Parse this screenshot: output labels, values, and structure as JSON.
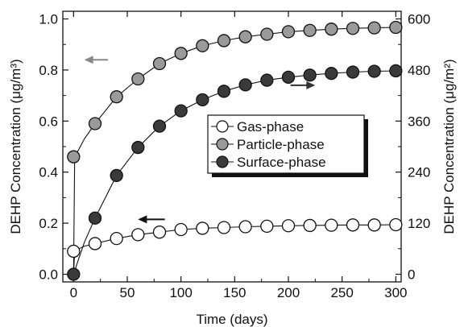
{
  "chart_data": {
    "type": "line",
    "xlabel": "Time (days)",
    "ylabel_left": "DEHP Concentration (μg/m³)",
    "ylabel_right": "DEHP Concentration (μg/m²)",
    "xlim": [
      -10,
      305
    ],
    "ylim_left": [
      -0.03,
      1.03
    ],
    "ylim_right": [
      -18,
      618
    ],
    "x_ticks": [
      0,
      50,
      100,
      150,
      200,
      250,
      300
    ],
    "y_left_ticks": [
      "0.0",
      "0.2",
      "0.4",
      "0.6",
      "0.8",
      "1.0"
    ],
    "y_right_ticks": [
      "0",
      "120",
      "240",
      "360",
      "480",
      "600"
    ],
    "series": [
      {
        "name": "Gas-phase",
        "axis": "left",
        "color": "#ffffff",
        "x": [
          0,
          20,
          40,
          60,
          80,
          100,
          120,
          140,
          160,
          180,
          200,
          220,
          240,
          260,
          280,
          300
        ],
        "y": [
          0.09,
          0.12,
          0.14,
          0.155,
          0.165,
          0.175,
          0.18,
          0.183,
          0.186,
          0.188,
          0.19,
          0.191,
          0.192,
          0.193,
          0.193,
          0.194
        ],
        "curve_x": [
          0,
          1,
          5,
          10,
          20,
          40,
          60,
          80,
          100,
          120,
          140,
          160,
          180,
          200,
          220,
          240,
          260,
          280,
          300
        ],
        "curve_y": [
          0.0,
          0.09,
          0.1,
          0.11,
          0.12,
          0.14,
          0.155,
          0.165,
          0.175,
          0.18,
          0.183,
          0.186,
          0.188,
          0.19,
          0.191,
          0.192,
          0.193,
          0.193,
          0.194
        ]
      },
      {
        "name": "Particle-phase",
        "axis": "left",
        "color": "#9a9a9a",
        "x": [
          0,
          20,
          40,
          60,
          80,
          100,
          120,
          140,
          160,
          180,
          200,
          220,
          240,
          260,
          280,
          300
        ],
        "y": [
          0.46,
          0.59,
          0.695,
          0.765,
          0.825,
          0.865,
          0.895,
          0.915,
          0.93,
          0.94,
          0.95,
          0.955,
          0.96,
          0.963,
          0.965,
          0.967
        ],
        "curve_x": [
          0,
          1,
          5,
          10,
          20,
          40,
          60,
          80,
          100,
          120,
          140,
          160,
          180,
          200,
          220,
          240,
          260,
          280,
          300
        ],
        "curve_y": [
          0.0,
          0.46,
          0.49,
          0.53,
          0.59,
          0.695,
          0.765,
          0.825,
          0.865,
          0.895,
          0.915,
          0.93,
          0.94,
          0.95,
          0.955,
          0.96,
          0.963,
          0.965,
          0.967
        ]
      },
      {
        "name": "Surface-phase",
        "axis": "right",
        "color": "#3a3a3a",
        "x": [
          0,
          20,
          40,
          60,
          80,
          100,
          120,
          140,
          160,
          180,
          200,
          220,
          240,
          260,
          280,
          300
        ],
        "y": [
          0,
          132,
          232,
          298,
          348,
          384,
          410,
          430,
          445,
          456,
          463,
          468,
          472,
          475,
          477,
          478
        ],
        "curve_x": [
          0,
          5,
          10,
          20,
          40,
          60,
          80,
          100,
          120,
          140,
          160,
          180,
          200,
          220,
          240,
          260,
          280,
          300
        ],
        "curve_y": [
          0,
          38,
          75,
          132,
          232,
          298,
          348,
          384,
          410,
          430,
          445,
          456,
          463,
          468,
          472,
          475,
          477,
          478
        ]
      }
    ],
    "legend": {
      "position": "center-right"
    },
    "annotations": [
      {
        "type": "arrow",
        "direction": "left",
        "axis": "left",
        "x_from": 32,
        "x_to": 10,
        "y": 0.84,
        "color": "#888888"
      },
      {
        "type": "arrow",
        "direction": "right",
        "axis": "left",
        "x_from": 202,
        "x_to": 225,
        "y": 0.74,
        "color": "#333333"
      },
      {
        "type": "arrow",
        "direction": "left",
        "axis": "left",
        "x_from": 85,
        "x_to": 60,
        "y": 0.215,
        "color": "#111111"
      }
    ]
  }
}
